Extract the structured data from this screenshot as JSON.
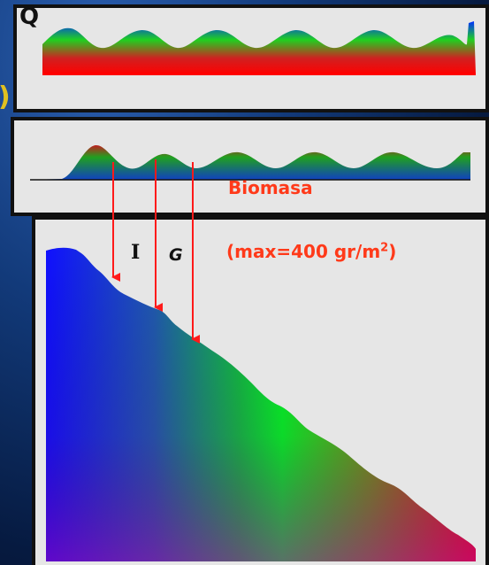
{
  "panels": {
    "top_label": "Q",
    "left_fragment": ")",
    "biomass_label": "Biomasa",
    "max_label_prefix": "(max=400 gr/m",
    "max_label_sup": "2",
    "max_label_suffix": ")",
    "marker_i": "I",
    "marker_g": "G"
  },
  "colors": {
    "panel_bg": "#e6e6e6",
    "panel_border": "#111111",
    "arrow": "#ff1a1a",
    "label_red": "#ff3a1a",
    "gradient_start": "#0000ff",
    "gradient_mid": "#00ff00",
    "gradient_end": "#ff0000"
  }
}
